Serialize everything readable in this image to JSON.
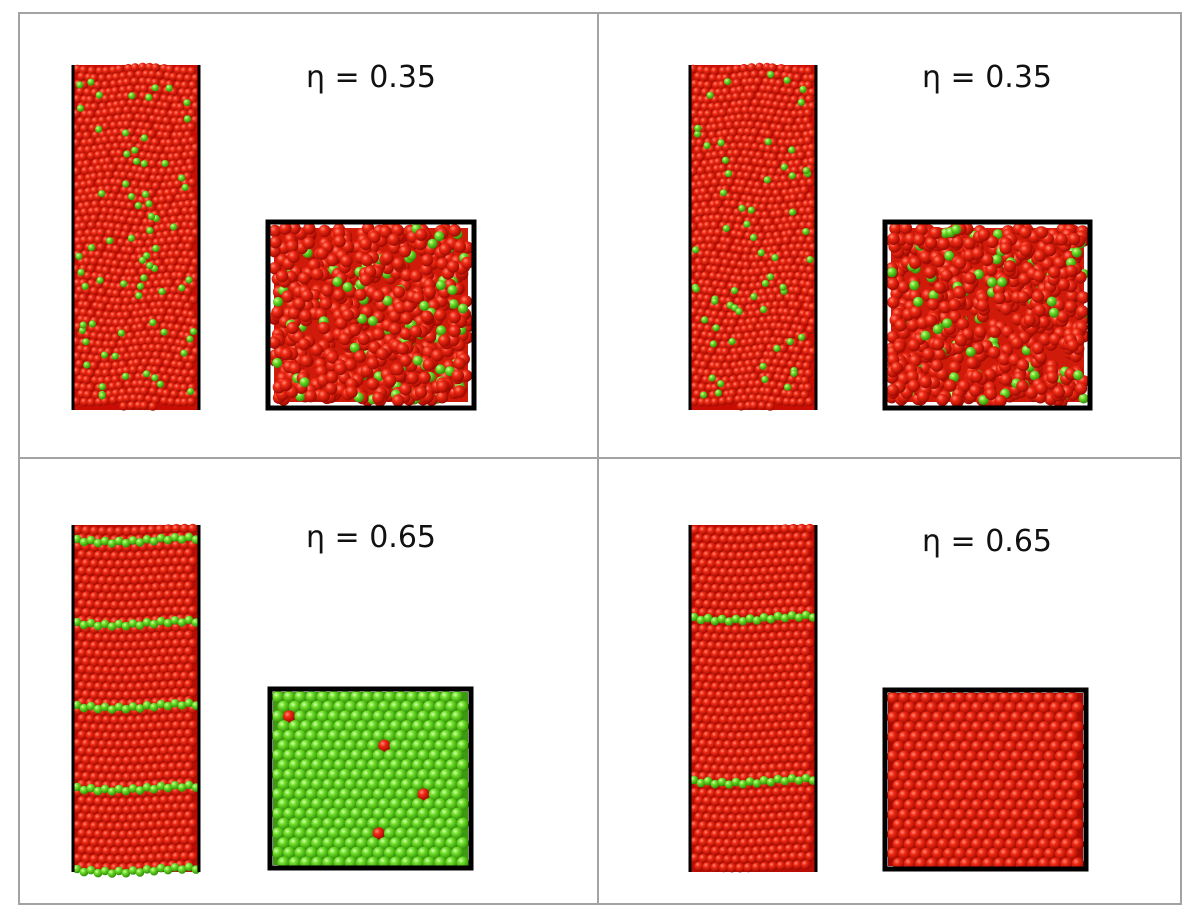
{
  "colors": {
    "sphere_major": "#e01408",
    "sphere_minor": "#5fd41c",
    "box_edge": "#000000",
    "grid_line": "#9a9a9a"
  },
  "panels": [
    {
      "label": "η = 0.35",
      "phase": "disordered",
      "side_view": "elongated column of mostly red spheres with scattered green spheres",
      "top_view": "cubic box, disordered red spheres with some green",
      "top_view_dominant_color": "red"
    },
    {
      "label": "η = 0.35",
      "phase": "disordered",
      "side_view": "elongated column of mostly red spheres with scattered green spheres",
      "top_view": "cubic box, disordered red spheres with some green",
      "top_view_dominant_color": "red"
    },
    {
      "label": "η = 0.65",
      "phase": "layered",
      "side_view": "ordered red column with thin green layers",
      "top_view": "cubic box, hexagonally packed green spheres with a few red",
      "top_view_dominant_color": "green"
    },
    {
      "label": "η = 0.65",
      "phase": "layered",
      "side_view": "ordered red column with two thin green layers",
      "top_view": "cubic box, hexagonally packed red spheres",
      "top_view_dominant_color": "red"
    }
  ]
}
